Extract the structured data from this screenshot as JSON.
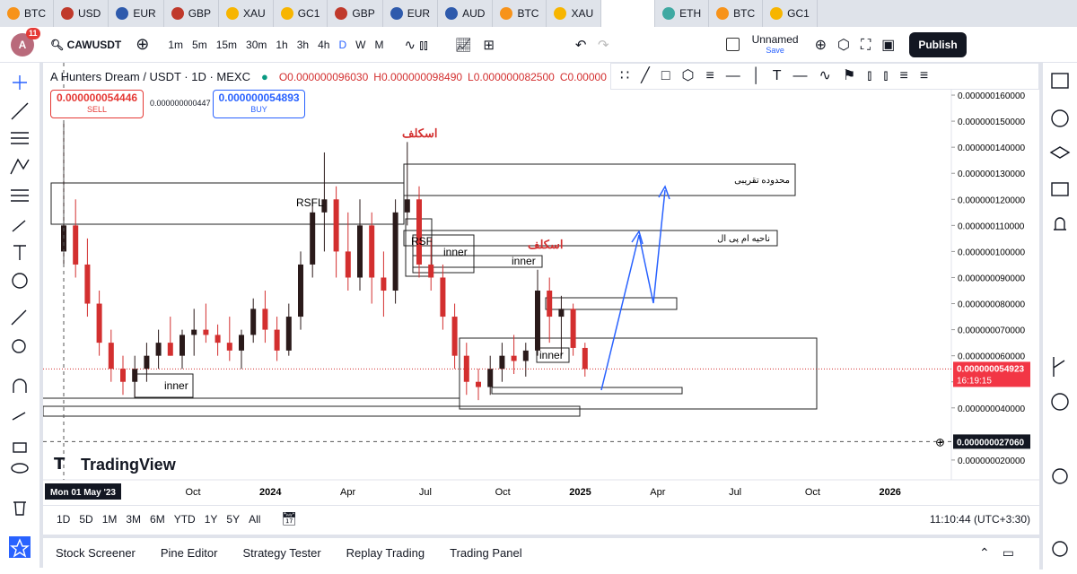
{
  "browser_tabs": [
    "BTC",
    "USD",
    "EUR",
    "GBP",
    "XAU",
    "GC1",
    "GBP",
    "EUR",
    "AUD",
    "BTC",
    "XAU",
    "",
    "ETH",
    "BTC",
    "GC1"
  ],
  "toolbar": {
    "notifications": "11",
    "symbol": "CAWUSDT",
    "intervals": [
      "1m",
      "5m",
      "15m",
      "30m",
      "1h",
      "3h",
      "4h",
      "D",
      "W",
      "M"
    ],
    "layout_name": "Unnamed",
    "save": "Save",
    "publish": "Publish"
  },
  "legend": {
    "title": "A Hunters Dream / USDT · 1D · MEXC",
    "open": "O0.000000096030",
    "high": "H0.000000098490",
    "low": "L0.000000082500",
    "close": "C0.00000"
  },
  "trade": {
    "sell_price": "0.000000054446",
    "sell": "SELL",
    "spread": "0.000000000447",
    "buy_price": "0.000000054893",
    "buy": "BUY"
  },
  "chart_data": {
    "type": "candlestick",
    "up_color": "#2a1a1a",
    "down_color": "#d32f2f",
    "ylim": [
      1.24e-08,
      1.724e-07
    ],
    "yticks": [
      {
        "value": 1.6e-07,
        "label": "0.000000160000"
      },
      {
        "value": 1.5e-07,
        "label": "0.000000150000"
      },
      {
        "value": 1.4e-07,
        "label": "0.000000140000"
      },
      {
        "value": 1.3e-07,
        "label": "0.000000130000"
      },
      {
        "value": 1.2e-07,
        "label": "0.000000120000"
      },
      {
        "value": 1.1e-07,
        "label": "0.000000110000"
      },
      {
        "value": 1e-07,
        "label": "0.000000100000"
      },
      {
        "value": 9e-08,
        "label": "0.000000090000"
      },
      {
        "value": 8e-08,
        "label": "0.000000080000"
      },
      {
        "value": 7e-08,
        "label": "0.000000070000"
      },
      {
        "value": 6e-08,
        "label": "0.000000060000"
      },
      {
        "value": 5e-08,
        "label": "0.000000050000"
      },
      {
        "value": 4e-08,
        "label": "0.000000040000"
      },
      {
        "value": 2e-08,
        "label": "0.000000020000"
      }
    ],
    "time_labels": [
      "Oct",
      "2024",
      "Apr",
      "Jul",
      "Oct",
      "2025",
      "Apr",
      "Jul",
      "Oct",
      "2026"
    ],
    "candles": [
      [
        1e-07,
        1.5e-07,
        9.5e-08,
        1.1e-07
      ],
      [
        1.1e-07,
        1.2e-07,
        9e-08,
        9.5e-08
      ],
      [
        9.5e-08,
        1.05e-07,
        7.5e-08,
        8e-08
      ],
      [
        8e-08,
        8.5e-08,
        6e-08,
        6.5e-08
      ],
      [
        6.5e-08,
        7e-08,
        5e-08,
        5.5e-08
      ],
      [
        5.5e-08,
        6e-08,
        4.5e-08,
        5e-08
      ],
      [
        5e-08,
        6e-08,
        4.4e-08,
        5.5e-08
      ],
      [
        5.5e-08,
        6.5e-08,
        5e-08,
        6e-08
      ],
      [
        6e-08,
        7e-08,
        5.5e-08,
        6.5e-08
      ],
      [
        6.5e-08,
        7.5e-08,
        6e-08,
        6e-08
      ],
      [
        6e-08,
        7e-08,
        5.5e-08,
        6.8e-08
      ],
      [
        6.8e-08,
        7.8e-08,
        6e-08,
        7e-08
      ],
      [
        7e-08,
        8e-08,
        6.5e-08,
        6.8e-08
      ],
      [
        6.8e-08,
        7.2e-08,
        6e-08,
        6.5e-08
      ],
      [
        6.5e-08,
        7.5e-08,
        5.8e-08,
        6.2e-08
      ],
      [
        6.2e-08,
        7e-08,
        5.5e-08,
        6.8e-08
      ],
      [
        6.8e-08,
        8.2e-08,
        6.5e-08,
        7.8e-08
      ],
      [
        7.8e-08,
        8.5e-08,
        6.5e-08,
        7e-08
      ],
      [
        7e-08,
        7.5e-08,
        5.8e-08,
        6.2e-08
      ],
      [
        6.2e-08,
        8e-08,
        6e-08,
        7.5e-08
      ],
      [
        7.5e-08,
        1e-07,
        7e-08,
        9.5e-08
      ],
      [
        9.5e-08,
        1.2e-07,
        9e-08,
        1.15e-07
      ],
      [
        1.15e-07,
        1.38e-07,
        1e-07,
        1.2e-07
      ],
      [
        1.2e-07,
        1.25e-07,
        9e-08,
        1e-07
      ],
      [
        1e-07,
        1.15e-07,
        8.5e-08,
        9e-08
      ],
      [
        9e-08,
        1.2e-07,
        8.5e-08,
        1.1e-07
      ],
      [
        1.1e-07,
        1.15e-07,
        8e-08,
        9e-08
      ],
      [
        9e-08,
        1e-07,
        7.5e-08,
        8.5e-08
      ],
      [
        8.5e-08,
        1.2e-07,
        8e-08,
        1.15e-07
      ],
      [
        1.15e-07,
        1.42e-07,
        1.1e-07,
        1.2e-07
      ],
      [
        1.2e-07,
        1.25e-07,
        9e-08,
        9.5e-08
      ],
      [
        9.5e-08,
        1.05e-07,
        8.5e-08,
        9e-08
      ],
      [
        9e-08,
        9.5e-08,
        7e-08,
        7.5e-08
      ],
      [
        7.5e-08,
        8e-08,
        5.5e-08,
        6e-08
      ],
      [
        6e-08,
        6.5e-08,
        4.5e-08,
        5e-08
      ],
      [
        5e-08,
        5.5e-08,
        4.3e-08,
        4.8e-08
      ],
      [
        4.8e-08,
        6e-08,
        4.5e-08,
        5.5e-08
      ],
      [
        5.5e-08,
        6.5e-08,
        5e-08,
        6e-08
      ],
      [
        6e-08,
        6.8e-08,
        5.3e-08,
        5.8e-08
      ],
      [
        5.8e-08,
        6.5e-08,
        5.2e-08,
        6.2e-08
      ],
      [
        6.2e-08,
        9.3e-08,
        6e-08,
        8.5e-08
      ],
      [
        8.5e-08,
        9e-08,
        6.5e-08,
        7.5e-08
      ],
      [
        7.5e-08,
        8.3e-08,
        6e-08,
        7.8e-08
      ],
      [
        7.8e-08,
        8e-08,
        6e-08,
        6.3e-08
      ],
      [
        6.3e-08,
        6.5e-08,
        5.2e-08,
        5.4923e-08
      ]
    ],
    "last_price": {
      "value": 5.4923e-08,
      "label": "0.000000054923"
    },
    "countdown": "16:19:15",
    "crosshair": {
      "value": 2.706e-08,
      "label": "0.000000027060"
    },
    "crosshair_date": "Mon 01 May '23",
    "annotations": {
      "scalp_1": "اسکلف",
      "scalp_2": "اسکلف",
      "rsfl": "RSFL",
      "rsf": "RSF",
      "inner_1": "inner",
      "inner_2": "inner",
      "inner_3": "inner",
      "inner_4": "inner",
      "target_zone": "محدوده تقریبی",
      "mpl_zone": "ناحیه ام پی ال"
    },
    "watermark": "TradingView"
  },
  "range_bar": {
    "ranges": [
      "1D",
      "5D",
      "1M",
      "3M",
      "6M",
      "YTD",
      "1Y",
      "5Y",
      "All"
    ],
    "clock": "11:10:44 (UTC+3:30)"
  },
  "bottom_tabs": [
    "Stock Screener",
    "Pine Editor",
    "Strategy Tester",
    "Replay Trading",
    "Trading Panel"
  ]
}
